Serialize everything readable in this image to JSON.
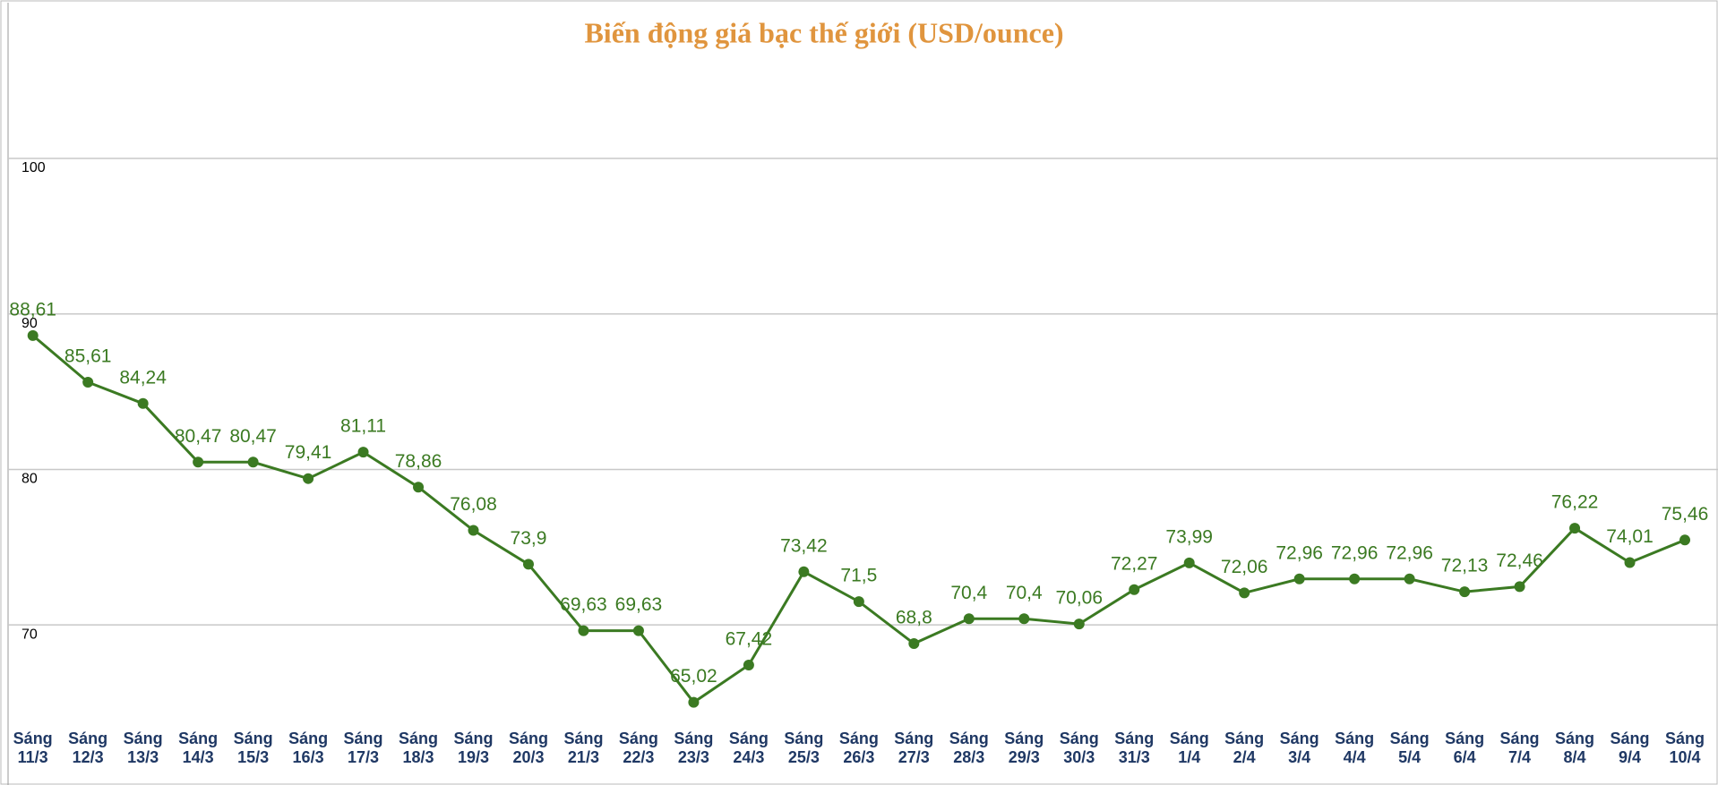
{
  "chart_data": {
    "type": "line",
    "title": "Biến động giá bạc thế giới (USD/ounce)",
    "categories": [
      "Sáng 11/3",
      "Sáng 12/3",
      "Sáng 13/3",
      "Sáng 14/3",
      "Sáng 15/3",
      "Sáng 16/3",
      "Sáng 17/3",
      "Sáng 18/3",
      "Sáng 19/3",
      "Sáng 20/3",
      "Sáng 21/3",
      "Sáng 22/3",
      "Sáng 23/3",
      "Sáng 24/3",
      "Sáng 25/3",
      "Sáng 26/3",
      "Sáng 27/3",
      "Sáng 28/3",
      "Sáng 29/3",
      "Sáng 30/3",
      "Sáng 31/3",
      "Sáng 1/4",
      "Sáng 2/4",
      "Sáng 3/4",
      "Sáng 4/4",
      "Sáng 5/4",
      "Sáng 6/4",
      "Sáng 7/4",
      "Sáng 8/4",
      "Sáng 9/4",
      "Sáng 10/4"
    ],
    "values": [
      88.61,
      85.61,
      84.24,
      80.47,
      80.47,
      79.41,
      81.11,
      78.86,
      76.08,
      73.9,
      69.63,
      69.63,
      65.02,
      67.42,
      73.42,
      71.5,
      68.8,
      70.4,
      70.4,
      70.06,
      72.27,
      73.99,
      72.06,
      72.96,
      72.96,
      72.96,
      72.13,
      72.46,
      76.22,
      74.01,
      75.46
    ],
    "value_labels": [
      "88,61",
      "85,61",
      "84,24",
      "80,47",
      "80,47",
      "79,41",
      "81,11",
      "78,86",
      "76,08",
      "73,9",
      "69,63",
      "69,63",
      "65,02",
      "67,42",
      "73,42",
      "71,5",
      "68,8",
      "70,4",
      "70,4",
      "70,06",
      "72,27",
      "73,99",
      "72,06",
      "72,96",
      "72,96",
      "72,96",
      "72,13",
      "72,46",
      "76,22",
      "74,01",
      "75,46"
    ],
    "color": "#3b7a22",
    "ylim": [
      63.7,
      110
    ],
    "yticks": [
      70,
      80,
      90,
      100
    ],
    "grid": true
  }
}
